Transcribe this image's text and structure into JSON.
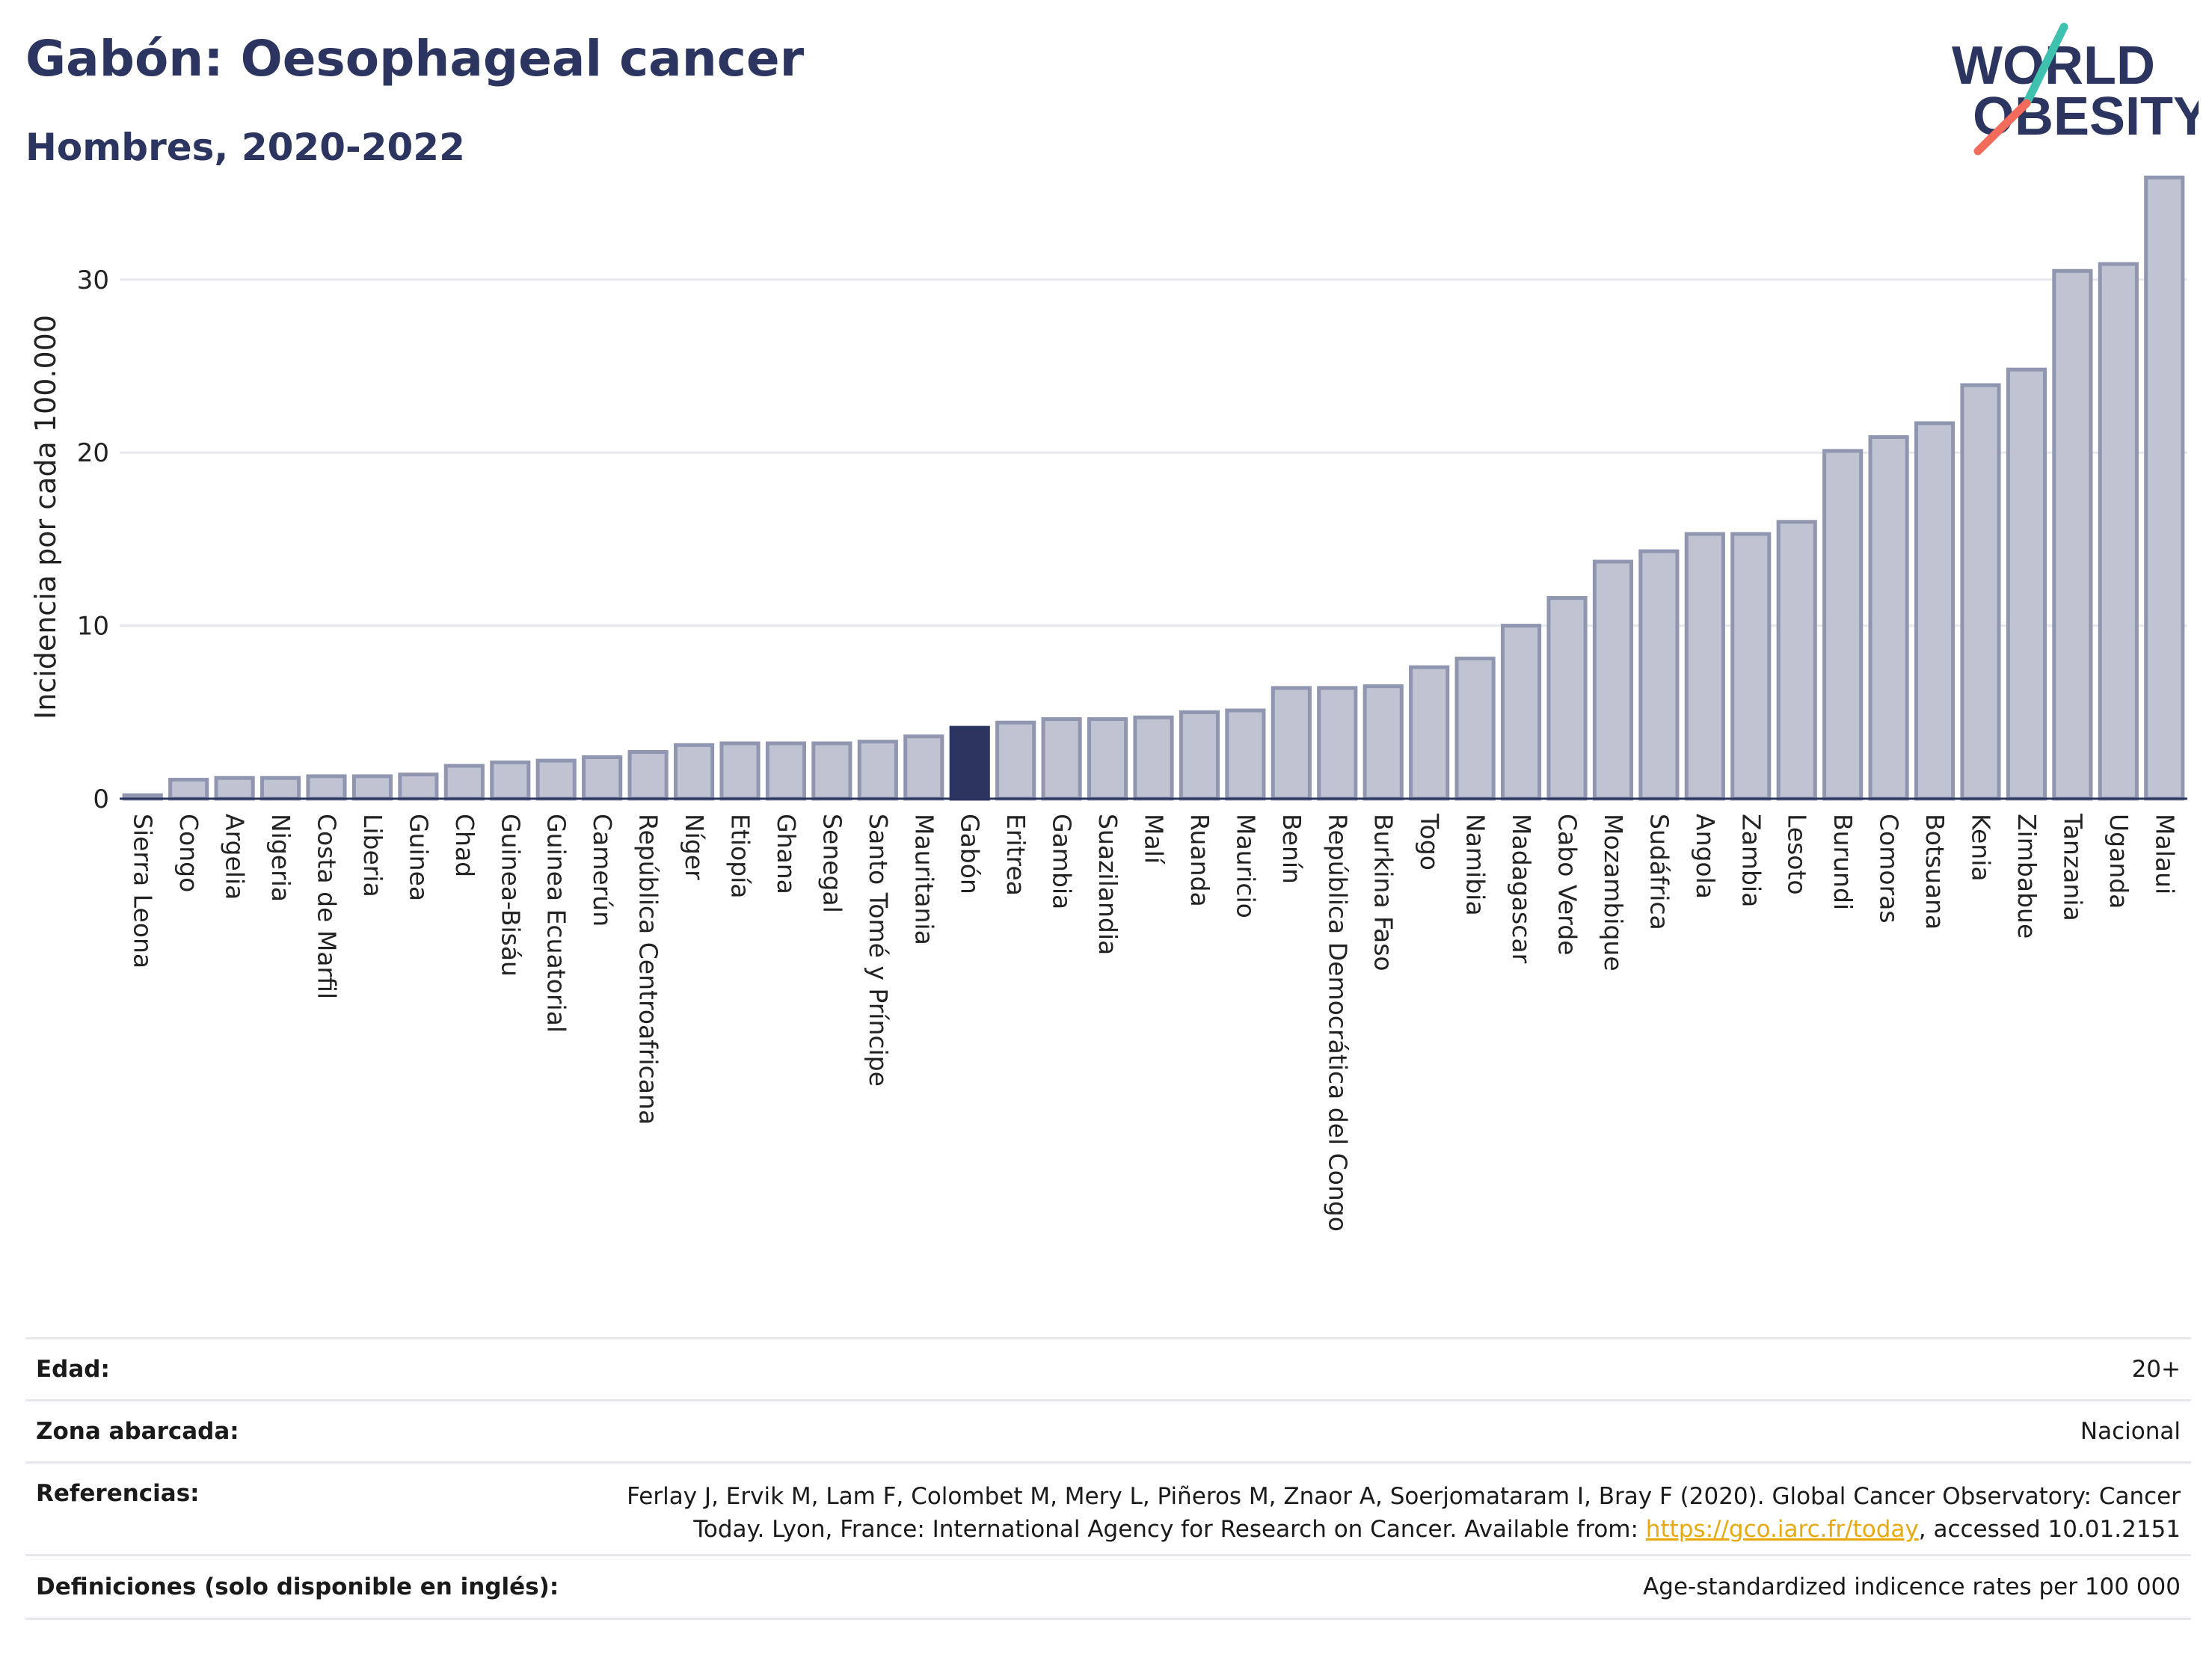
{
  "header": {
    "title": "Gabón: Oesophageal cancer",
    "subtitle": "Hombres, 2020-2022"
  },
  "logo": {
    "line1": "WORLD",
    "line2": "OBESITY",
    "name": "world-obesity-logo"
  },
  "colors": {
    "bar": "#bfc3d2",
    "bar_stroke": "#9096b0",
    "highlight": "#2b3560",
    "grid": "#e6e8ee",
    "axis_text": "#222222"
  },
  "chart_data": {
    "type": "bar",
    "ylabel": "Incidencia por cada 100.000",
    "xlabel": "",
    "ylim": [
      0,
      36
    ],
    "yticks": [
      0,
      10,
      20,
      30
    ],
    "grid": true,
    "highlight_category": "Gabón",
    "categories": [
      "Sierra Leona",
      "Congo",
      "Argelia",
      "Nigeria",
      "Costa de Marfil",
      "Liberia",
      "Guinea",
      "Chad",
      "Guinea-Bisáu",
      "Guinea Ecuatorial",
      "Camerún",
      "República Centroafricana",
      "Níger",
      "Etiopía",
      "Ghana",
      "Senegal",
      "Santo Tomé y Príncipe",
      "Mauritania",
      "Gabón",
      "Eritrea",
      "Gambia",
      "Suazilandia",
      "Malí",
      "Ruanda",
      "Mauricio",
      "Benín",
      "República Democrática del Congo",
      "Burkina Faso",
      "Togo",
      "Namibia",
      "Madagascar",
      "Cabo Verde",
      "Mozambique",
      "Sudáfrica",
      "Angola",
      "Zambia",
      "Lesoto",
      "Burundi",
      "Comoras",
      "Botsuana",
      "Kenia",
      "Zimbabue",
      "Tanzania",
      "Uganda",
      "Malaui"
    ],
    "values": [
      0.2,
      1.1,
      1.2,
      1.2,
      1.3,
      1.3,
      1.4,
      1.9,
      2.1,
      2.2,
      2.4,
      2.7,
      3.1,
      3.2,
      3.2,
      3.2,
      3.3,
      3.6,
      4.1,
      4.4,
      4.6,
      4.6,
      4.7,
      5.0,
      5.1,
      6.4,
      6.4,
      6.5,
      7.6,
      8.1,
      10.0,
      11.6,
      13.7,
      14.3,
      15.3,
      15.3,
      16.0,
      20.1,
      20.9,
      21.7,
      23.9,
      24.8,
      30.5,
      30.9,
      35.9
    ]
  },
  "info": {
    "rows": [
      {
        "label": "Edad:",
        "value": "20+"
      },
      {
        "label": "Zona abarcada:",
        "value": "Nacional"
      },
      {
        "label": "Referencias:",
        "value": "Ferlay J, Ervik M, Lam F, Colombet M, Mery L, Piñeros M, Znaor A, Soerjomataram I, Bray F (2020). Global Cancer Observatory: Cancer Today. Lyon, France: International Agency for Research on Cancer. Available from: ",
        "link": "https://gco.iarc.fr/today",
        "suffix": ", accessed 10.01.2151"
      },
      {
        "label": "Definiciones (solo disponible en inglés):",
        "value": "Age-standardized indicence rates per 100 000"
      }
    ]
  }
}
